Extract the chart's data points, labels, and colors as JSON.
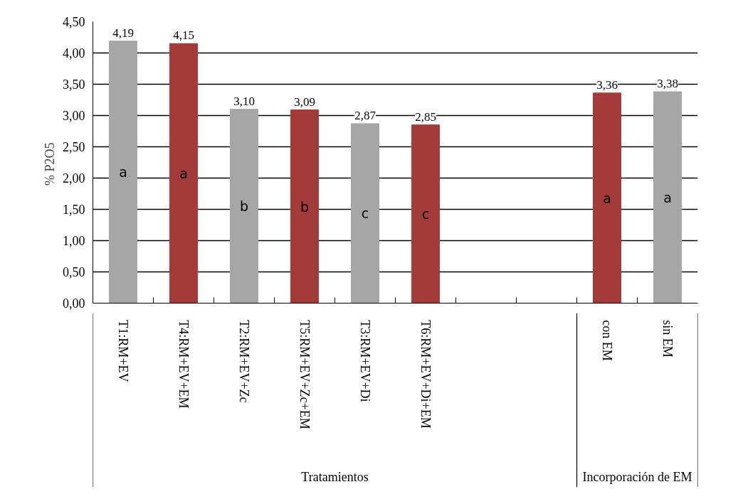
{
  "chart_data": {
    "type": "bar",
    "ylabel": "%  P2O5",
    "categories": [
      "T1:RM+EV",
      "T4:RM+EV+EM",
      "T2:RM+EV+Zc",
      "T5:RM+EV+Zc+EM",
      "T3:RM+EV+Di",
      "T6:RM+EV+Di+EM",
      null,
      null,
      "con EM",
      "sin EM"
    ],
    "values": [
      4.19,
      4.15,
      3.1,
      3.09,
      2.87,
      2.85,
      null,
      null,
      3.36,
      3.38
    ],
    "colors": [
      "#a6a6a6",
      "#a33b3b",
      "#a6a6a6",
      "#a33b3b",
      "#a6a6a6",
      "#a33b3b",
      "#a6a6a6",
      "#a33b3b",
      "#a33b3b",
      "#a6a6a6"
    ],
    "value_labels": [
      "4,19",
      "4,15",
      "3,10",
      "3,09",
      "2,87",
      "2,85",
      null,
      null,
      "3,36",
      "3,38"
    ],
    "ylim": [
      0,
      4.5
    ],
    "yticks": [
      {
        "value": 0,
        "label": "0,00"
      },
      {
        "value": 0.5,
        "label": "0,50"
      },
      {
        "value": 1,
        "label": "1,00"
      },
      {
        "value": 1.5,
        "label": "1,50"
      },
      {
        "value": 2,
        "label": "2,00"
      },
      {
        "value": 2.5,
        "label": "2,50"
      },
      {
        "value": 3,
        "label": "3,00"
      },
      {
        "value": 3.5,
        "label": "3,50"
      },
      {
        "value": 4,
        "label": "4,00"
      },
      {
        "value": 4.5,
        "label": "4,50"
      }
    ],
    "grid": "y",
    "annotations": [
      "a",
      "a",
      "b",
      "b",
      "c",
      "c",
      "a",
      "a",
      "Tratamientos",
      "Incorporación de EM"
    ]
  }
}
